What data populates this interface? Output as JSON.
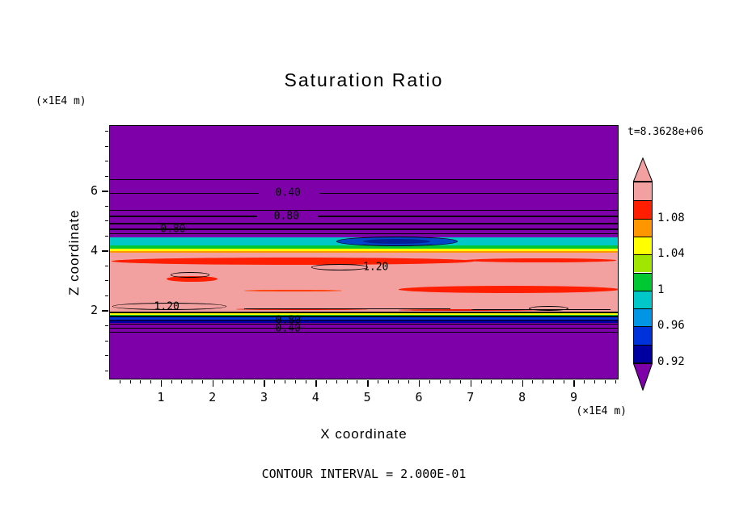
{
  "title": "Saturation Ratio",
  "timestamp": "t=8.3628e+06",
  "footer": "CONTOUR INTERVAL = 2.000E-01",
  "x_axis": {
    "label": "X coordinate",
    "unit": "(×1E4 m)",
    "ticks": [
      1,
      2,
      3,
      4,
      5,
      6,
      7,
      8,
      9
    ]
  },
  "y_axis": {
    "label": "Z coordinate",
    "unit": "(×1E4 m)",
    "ticks": [
      2,
      4,
      6
    ]
  },
  "colorbar": {
    "labels": [
      "1.08",
      "1.04",
      "1",
      "0.96",
      "0.92"
    ],
    "segments_top_to_bottom": [
      "#F2A0A0",
      "#FF1E00",
      "#FF9600",
      "#FFFF00",
      "#A0E600",
      "#00C832",
      "#00C8C8",
      "#0096E6",
      "#0032DC",
      "#0000A0"
    ],
    "arrow_top_color": "#F2A0A0",
    "arrow_bottom_color": "#7D00A8"
  },
  "chart_data": {
    "type": "filled_contour",
    "title": "Saturation Ratio",
    "xlabel": "X coordinate (×1E4 m)",
    "ylabel": "Z coordinate (×1E4 m)",
    "x_range": [
      0,
      9.87
    ],
    "z_range": [
      -0.31,
      8.2
    ],
    "contour_interval": 0.2,
    "time_annotation": "t=8.3628e+06",
    "color_scale_labels": [
      "1.08",
      "1.04",
      "1",
      "0.96",
      "0.92"
    ],
    "background_value_color": "#7D00A8",
    "bands": [
      {
        "z_top": 4.47,
        "z_bot": 4.2,
        "value_range": "0.96-0.98",
        "color": "#00C8C8"
      },
      {
        "z_top": 4.2,
        "z_bot": 4.1,
        "value_range": "0.98-1.00",
        "color": "#00C832"
      },
      {
        "z_top": 4.1,
        "z_bot": 4.02,
        "value_range": "1.02-1.04",
        "color": "#FFFF00"
      },
      {
        "z_top": 4.02,
        "z_bot": 3.95,
        "value_range": "1.04-1.06",
        "color": "#FF9600"
      },
      {
        "z_top": 3.95,
        "z_bot": 1.96,
        "value_range": "1.08-1.10",
        "color": "#F2A0A0"
      },
      {
        "z_top": 1.96,
        "z_bot": 1.92,
        "value_range": "1.04-1.06",
        "color": "#FF9600"
      },
      {
        "z_top": 1.92,
        "z_bot": 1.88,
        "value_range": "1.02-1.04",
        "color": "#FFFF00"
      },
      {
        "z_top": 1.88,
        "z_bot": 1.84,
        "value_range": "0.98-1.00",
        "color": "#00C832"
      },
      {
        "z_top": 1.84,
        "z_bot": 1.79,
        "value_range": "0.96-0.98",
        "color": "#00C8C8"
      },
      {
        "z_top": 1.79,
        "z_bot": 1.72,
        "value_range": "0.94-0.96",
        "color": "#0032DC"
      },
      {
        "z_top": 1.72,
        "z_bot": 1.62,
        "value_range": "0.92-0.94",
        "color": "#0000A0"
      }
    ],
    "lens": {
      "cx": 5.56,
      "cz": 4.33,
      "rx": 1.18,
      "rz": 0.16,
      "color": "#0046C8",
      "core_color": "#001E96"
    },
    "red_streaks": [
      {
        "x_from": 0.03,
        "x_to": 7.05,
        "z_top": 3.8,
        "z_bot": 3.56,
        "color": "#FF1E00"
      },
      {
        "x_from": 6.9,
        "x_to": 9.8,
        "z_top": 3.76,
        "z_bot": 3.63,
        "color": "#FF1E00"
      },
      {
        "x_from": 1.1,
        "x_to": 2.08,
        "z_top": 3.18,
        "z_bot": 2.98,
        "color": "#FF1E00"
      },
      {
        "x_from": 5.6,
        "x_to": 9.87,
        "z_top": 2.86,
        "z_bot": 2.62,
        "color": "#FF1E00"
      },
      {
        "x_from": 2.6,
        "x_to": 4.5,
        "z_top": 2.72,
        "z_bot": 2.66,
        "color": "#FF3C00"
      },
      {
        "x_from": 2.45,
        "x_to": 5.0,
        "z_top": 2.1,
        "z_bot": 2.05,
        "color": "#E61400"
      },
      {
        "x_from": 5.6,
        "x_to": 8.3,
        "z_top": 2.08,
        "z_bot": 2.03,
        "color": "#E61400"
      }
    ],
    "contour_lines": [
      {
        "x_from": 0,
        "x_to": 9.87,
        "z": 6.4
      },
      {
        "x_from": 0,
        "x_to": 2.88,
        "z": 5.95
      },
      {
        "x_from": 4.05,
        "x_to": 9.87,
        "z": 5.95
      },
      {
        "x_from": 0,
        "x_to": 9.87,
        "z": 5.38
      },
      {
        "x_from": 0,
        "x_to": 2.85,
        "z": 5.17
      },
      {
        "x_from": 4.02,
        "x_to": 9.87,
        "z": 5.17
      },
      {
        "x_from": 0,
        "x_to": 9.87,
        "z": 4.93
      },
      {
        "x_from": 0,
        "x_to": 9.87,
        "z": 4.74
      },
      {
        "x_from": 0,
        "x_to": 9.87,
        "z": 4.6
      },
      {
        "x_from": 0,
        "x_to": 9.87,
        "z": 1.95,
        "w": 2
      },
      {
        "x_from": 0,
        "x_to": 9.87,
        "z": 1.82
      },
      {
        "x_from": 0,
        "x_to": 9.87,
        "z": 1.7
      },
      {
        "x_from": 0,
        "x_to": 9.87,
        "z": 1.57
      },
      {
        "x_from": 0,
        "x_to": 9.87,
        "z": 1.43
      },
      {
        "x_from": 0,
        "x_to": 9.87,
        "z": 1.3
      },
      {
        "x_from": 2.6,
        "x_to": 6.6,
        "z": 2.08
      },
      {
        "x_from": 7.0,
        "x_to": 9.7,
        "z": 2.05
      }
    ],
    "contour_ellipses": [
      {
        "cx": 4.45,
        "cz": 3.47,
        "rx": 0.55,
        "rz": 0.11
      },
      {
        "cx": 1.55,
        "cz": 3.22,
        "rx": 0.38,
        "rz": 0.09
      },
      {
        "cx": 1.15,
        "cz": 2.16,
        "rx": 1.1,
        "rz": 0.12
      },
      {
        "cx": 8.5,
        "cz": 2.1,
        "rx": 0.38,
        "rz": 0.08
      }
    ],
    "contour_labels": [
      {
        "text": "0.40",
        "x": 3.45,
        "z": 5.95
      },
      {
        "text": "0.80",
        "x": 3.42,
        "z": 5.17
      },
      {
        "text": "0.80",
        "x": 1.22,
        "z": 4.74
      },
      {
        "text": "1.20",
        "x": 5.15,
        "z": 3.47
      },
      {
        "text": "1.20",
        "x": 1.1,
        "z": 2.14
      },
      {
        "text": "0.80",
        "x": 3.45,
        "z": 1.7
      },
      {
        "text": "0.40",
        "x": 3.45,
        "z": 1.43
      }
    ]
  }
}
